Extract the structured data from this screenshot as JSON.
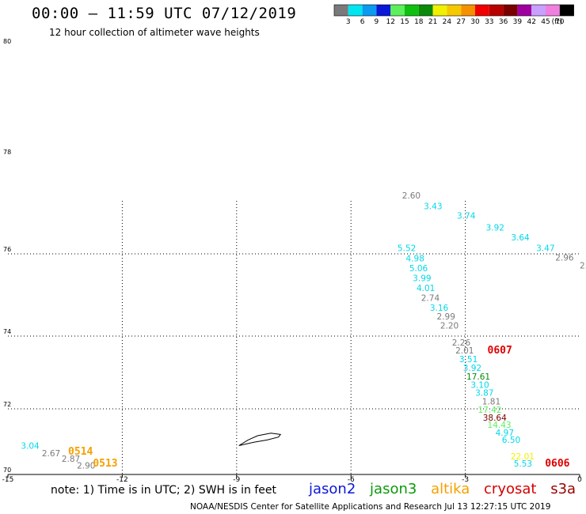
{
  "header": {
    "title": "00:00 – 11:59 UTC 07/12/2019",
    "subtitle": "12 hour collection of altimeter wave heights"
  },
  "footer": {
    "note": "note:  1) Time is in UTC;  2) SWH is in feet",
    "credit": "NOAA/NESDIS Center for Satellite Applications and Research     Jul 13 12:27:15 UTC 2019"
  },
  "satellites": [
    {
      "name": "jason2",
      "color": "#0a18d8"
    },
    {
      "name": "jason3",
      "color": "#0a9a0a"
    },
    {
      "name": "altika",
      "color": "#f5a000"
    },
    {
      "name": "cryosat",
      "color": "#d40000"
    },
    {
      "name": "s3a",
      "color": "#9a0000"
    }
  ],
  "chart_data": {
    "type": "scatter",
    "xlim": [
      -15,
      0
    ],
    "ylim": [
      70,
      80
    ],
    "x_ticks": [
      "-15",
      "-12",
      "-9",
      "-6",
      "-3",
      "0"
    ],
    "y_ticks": [
      "70",
      "72",
      "74",
      "76",
      "78",
      "80"
    ],
    "grid": true,
    "legend": {
      "placement": "top-right",
      "unit": "(ft)",
      "bins": [
        {
          "label": "3",
          "color": "#7a7a7a"
        },
        {
          "label": "6",
          "color": "#00e5f0"
        },
        {
          "label": "9",
          "color": "#0a9af0"
        },
        {
          "label": "12",
          "color": "#0a18d8"
        },
        {
          "label": "15",
          "color": "#5cf05c"
        },
        {
          "label": "18",
          "color": "#10c010"
        },
        {
          "label": "21",
          "color": "#0a8a0a"
        },
        {
          "label": "24",
          "color": "#f0f000"
        },
        {
          "label": "27",
          "color": "#f5c800"
        },
        {
          "label": "30",
          "color": "#f59000"
        },
        {
          "label": "33",
          "color": "#f00000"
        },
        {
          "label": "36",
          "color": "#b80000"
        },
        {
          "label": "39",
          "color": "#7a0000"
        },
        {
          "label": "42",
          "color": "#a000a0"
        },
        {
          "label": "45",
          "color": "#c8a0ff"
        },
        {
          "label": "70",
          "color": "#f080e0"
        },
        {
          "label": "",
          "color": "#000000"
        }
      ]
    },
    "points": [
      {
        "x": -4.66,
        "y": 77.14,
        "label": "2.60",
        "color": "#7a7a7a"
      },
      {
        "x": -4.09,
        "y": 76.92,
        "label": "3.43",
        "color": "#00d8e8"
      },
      {
        "x": -3.22,
        "y": 76.72,
        "label": "3.74",
        "color": "#00d8e8"
      },
      {
        "x": -2.46,
        "y": 76.48,
        "label": "3.92",
        "color": "#00d8e8"
      },
      {
        "x": -1.8,
        "y": 76.28,
        "label": "3.64",
        "color": "#00d8e8"
      },
      {
        "x": -1.14,
        "y": 76.06,
        "label": "3.47",
        "color": "#00d8e8"
      },
      {
        "x": -0.64,
        "y": 75.84,
        "label": "2.96",
        "color": "#7a7a7a"
      },
      {
        "x": 0.0,
        "y": 75.64,
        "label": "2.",
        "color": "#7a7a7a"
      },
      {
        "x": -4.78,
        "y": 76.06,
        "label": "5.52",
        "color": "#00d8e8"
      },
      {
        "x": -4.56,
        "y": 75.82,
        "label": "4.98",
        "color": "#00d8e8"
      },
      {
        "x": -4.47,
        "y": 75.58,
        "label": "5.06",
        "color": "#00d8e8"
      },
      {
        "x": -4.38,
        "y": 75.34,
        "label": "3.99",
        "color": "#00d8e8"
      },
      {
        "x": -4.28,
        "y": 75.1,
        "label": "4.01",
        "color": "#00d8e8"
      },
      {
        "x": -4.16,
        "y": 74.86,
        "label": "2.74",
        "color": "#7a7a7a"
      },
      {
        "x": -3.93,
        "y": 74.62,
        "label": "3.16",
        "color": "#00d8e8"
      },
      {
        "x": -3.75,
        "y": 74.4,
        "label": "2.99",
        "color": "#7a7a7a"
      },
      {
        "x": -3.66,
        "y": 74.18,
        "label": "2.20",
        "color": "#7a7a7a"
      },
      {
        "x": -3.35,
        "y": 73.74,
        "label": "2.26",
        "color": "#7a7a7a"
      },
      {
        "x": -3.26,
        "y": 73.52,
        "label": "2.01",
        "color": "#7a7a7a"
      },
      {
        "x": -3.16,
        "y": 73.28,
        "label": "3.51",
        "color": "#00d8e8"
      },
      {
        "x": -3.06,
        "y": 73.04,
        "label": "3.92",
        "color": "#00d8e8"
      },
      {
        "x": -2.97,
        "y": 72.8,
        "label": "17.61",
        "color": "#0a8a0a"
      },
      {
        "x": -2.86,
        "y": 72.58,
        "label": "3.10",
        "color": "#00d8e8"
      },
      {
        "x": -2.74,
        "y": 72.36,
        "label": "3.87",
        "color": "#00d8e8"
      },
      {
        "x": -2.56,
        "y": 72.12,
        "label": "1.81",
        "color": "#7a7a7a"
      },
      {
        "x": -2.67,
        "y": 71.88,
        "label": "17.42",
        "color": "#5cf05c"
      },
      {
        "x": -2.54,
        "y": 71.64,
        "label": "38.64",
        "color": "#7a0000"
      },
      {
        "x": -2.42,
        "y": 71.42,
        "label": "14.43",
        "color": "#5cf05c"
      },
      {
        "x": -2.21,
        "y": 71.18,
        "label": "4.97",
        "color": "#00d8e8"
      },
      {
        "x": -2.04,
        "y": 70.96,
        "label": "6.50",
        "color": "#00d8e8"
      },
      {
        "x": -1.81,
        "y": 70.46,
        "label": "22.01",
        "color": "#f0f000"
      },
      {
        "x": -1.73,
        "y": 70.24,
        "label": "5.53",
        "color": "#00d8e8"
      },
      {
        "x": -14.66,
        "y": 70.78,
        "label": "3.04",
        "color": "#00d8e8"
      },
      {
        "x": -14.11,
        "y": 70.56,
        "label": "2.67",
        "color": "#7a7a7a"
      },
      {
        "x": -13.59,
        "y": 70.38,
        "label": "2.87",
        "color": "#7a7a7a"
      },
      {
        "x": -13.19,
        "y": 70.18,
        "label": "2.90",
        "color": "#7a7a7a"
      }
    ],
    "pass_labels": [
      {
        "x": -2.42,
        "y": 73.52,
        "label": "0607",
        "color": "#e00000"
      },
      {
        "x": -0.91,
        "y": 70.24,
        "label": "0606",
        "color": "#e00000"
      },
      {
        "x": -13.42,
        "y": 70.6,
        "label": "0514",
        "color": "#f5a000"
      },
      {
        "x": -12.77,
        "y": 70.24,
        "label": "0513",
        "color": "#f5a000"
      }
    ],
    "island_outline": [
      [
        -8.94,
        70.88
      ],
      [
        -8.55,
        70.98
      ],
      [
        -8.2,
        71.05
      ],
      [
        -7.9,
        71.14
      ],
      [
        -7.85,
        71.22
      ],
      [
        -8.1,
        71.26
      ],
      [
        -8.45,
        71.18
      ],
      [
        -8.7,
        71.05
      ],
      [
        -8.94,
        70.88
      ]
    ]
  }
}
